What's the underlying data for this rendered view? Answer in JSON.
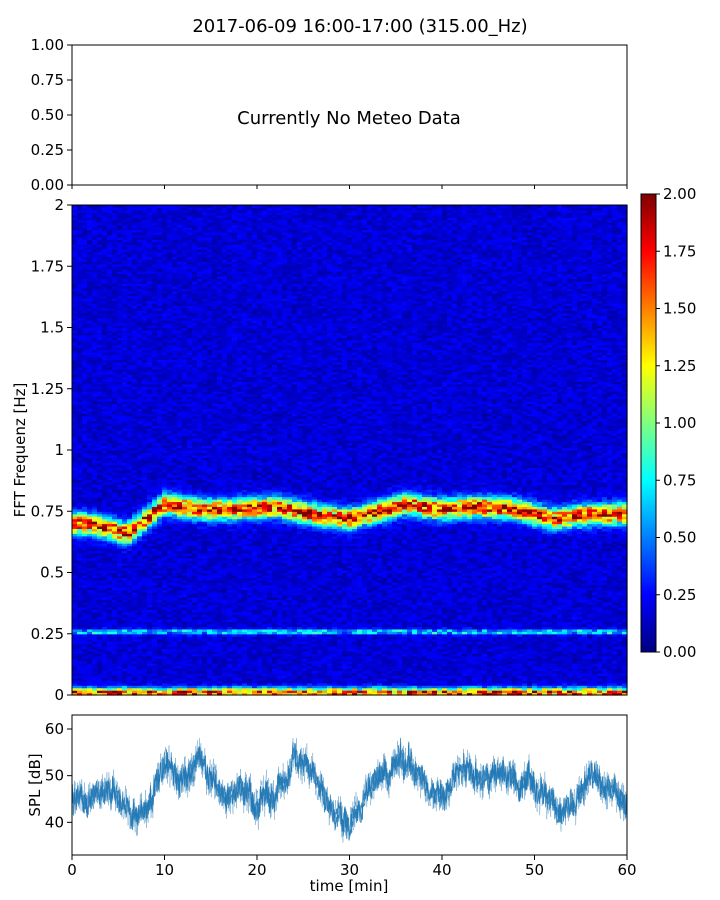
{
  "figure": {
    "title": "2017-06-09 16:00-17:00 (315.00_Hz)"
  },
  "chart_data": [
    {
      "type": "line",
      "panel": "meteo",
      "annotation": "Currently No Meteo Data",
      "ylim": [
        0,
        1
      ],
      "yticks": [
        "0.00",
        "0.25",
        "0.50",
        "0.75",
        "1.00"
      ],
      "yticks_values": [
        0,
        0.25,
        0.5,
        0.75,
        1.0
      ],
      "xlim": [
        0,
        60
      ],
      "xticks_values": [
        0,
        10,
        20,
        30,
        40,
        50,
        60
      ],
      "series": []
    },
    {
      "type": "heatmap",
      "panel": "spectrogram",
      "ylabel": "FFT Frequenz [Hz]",
      "xlim": [
        0,
        60
      ],
      "ylim": [
        0,
        2
      ],
      "yticks": [
        "0",
        "0.25",
        "0.5",
        "0.75",
        "1",
        "1.25",
        "1.5",
        "1.75",
        "2"
      ],
      "yticks_values": [
        0,
        0.25,
        0.5,
        0.75,
        1,
        1.25,
        1.5,
        1.75,
        2
      ],
      "colorbar": {
        "range": [
          0,
          2
        ],
        "ticks": [
          "0.00",
          "0.25",
          "0.50",
          "0.75",
          "1.00",
          "1.25",
          "1.50",
          "1.75",
          "2.00"
        ],
        "ticks_values": [
          0,
          0.25,
          0.5,
          0.75,
          1.0,
          1.25,
          1.5,
          1.75,
          2.0
        ],
        "colormap": [
          "#00007f",
          "#0000ff",
          "#007fff",
          "#00ffff",
          "#7fff7f",
          "#ffff00",
          "#ff7f00",
          "#ff0000",
          "#7f0000"
        ]
      },
      "features": {
        "base_level": 0.2,
        "dominant_band_center_hz": [
          [
            0,
            0.7
          ],
          [
            2,
            0.7
          ],
          [
            4,
            0.68
          ],
          [
            6,
            0.66
          ],
          [
            8,
            0.72
          ],
          [
            10,
            0.78
          ],
          [
            14,
            0.76
          ],
          [
            18,
            0.76
          ],
          [
            22,
            0.77
          ],
          [
            26,
            0.74
          ],
          [
            30,
            0.72
          ],
          [
            32,
            0.74
          ],
          [
            36,
            0.78
          ],
          [
            40,
            0.76
          ],
          [
            44,
            0.77
          ],
          [
            48,
            0.76
          ],
          [
            52,
            0.72
          ],
          [
            56,
            0.74
          ],
          [
            60,
            0.74
          ]
        ],
        "dominant_band_peak_level": 1.9,
        "secondary_band_hz": 0.26,
        "secondary_band_level": 0.85,
        "floor_band_hz": 0.01,
        "floor_band_level": 1.9
      }
    },
    {
      "type": "line",
      "panel": "spl",
      "xlabel": "time [min]",
      "ylabel": "SPL [dB]",
      "xlim": [
        0,
        60
      ],
      "ylim": [
        33,
        63
      ],
      "xticks": [
        "0",
        "10",
        "20",
        "30",
        "40",
        "50",
        "60"
      ],
      "xticks_values": [
        0,
        10,
        20,
        30,
        40,
        50,
        60
      ],
      "yticks": [
        "40",
        "50",
        "60"
      ],
      "yticks_values": [
        40,
        50,
        60
      ],
      "color": "#1f77b4",
      "trend": {
        "x": [
          0,
          2,
          4,
          6,
          8,
          10,
          12,
          14,
          16,
          18,
          20,
          22,
          24,
          26,
          28,
          30,
          32,
          34,
          36,
          38,
          40,
          42,
          44,
          46,
          48,
          50,
          52,
          54,
          56,
          58,
          60
        ],
        "y": [
          46,
          44,
          47,
          44,
          41,
          52,
          50,
          53,
          46,
          49,
          43,
          46,
          53,
          51,
          45,
          38,
          46,
          51,
          54,
          46,
          48,
          52,
          49,
          51,
          50,
          48,
          44,
          43,
          50,
          49,
          45
        ],
        "spread": [
          5,
          5,
          5,
          5,
          5,
          6,
          5,
          5,
          5,
          5,
          6,
          5,
          5,
          5,
          5,
          5,
          5,
          5,
          6,
          5,
          5,
          5,
          5,
          5,
          5,
          5,
          5,
          5,
          5,
          5,
          5
        ]
      }
    }
  ]
}
